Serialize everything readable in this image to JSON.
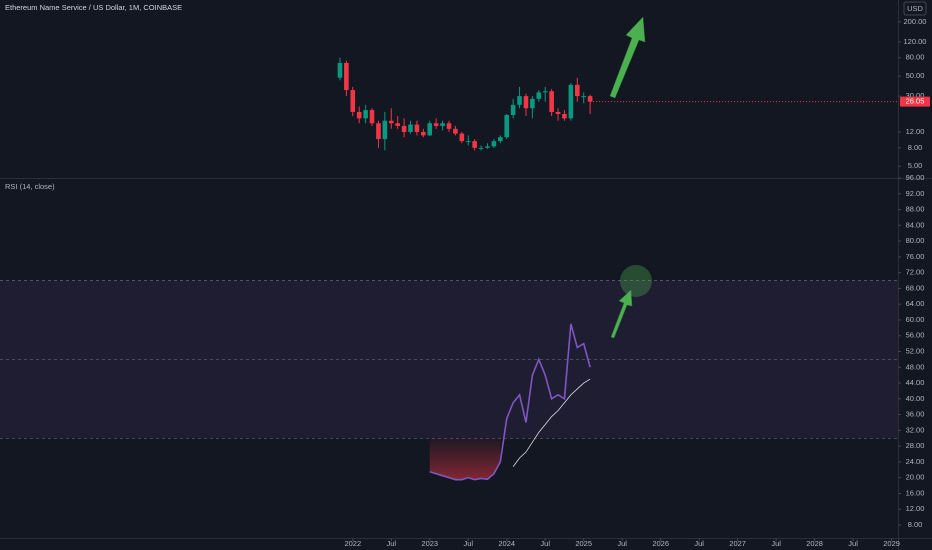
{
  "chart_data": [
    {
      "type": "candlestick",
      "title": "Ethereum Name Service / US Dollar, 1M, COINBASE",
      "currency": "USD",
      "log_scale": true,
      "up_color": "#089981",
      "down_color": "#f23645",
      "x": [
        "2021-11",
        "2021-12",
        "2022-01",
        "2022-02",
        "2022-03",
        "2022-04",
        "2022-05",
        "2022-06",
        "2022-07",
        "2022-08",
        "2022-09",
        "2022-10",
        "2022-11",
        "2022-12",
        "2023-01",
        "2023-02",
        "2023-03",
        "2023-04",
        "2023-05",
        "2023-06",
        "2023-07",
        "2023-08",
        "2023-09",
        "2023-10",
        "2023-11",
        "2023-12",
        "2024-01",
        "2024-02",
        "2024-03",
        "2024-04",
        "2024-05",
        "2024-06",
        "2024-07",
        "2024-08",
        "2024-09",
        "2024-10",
        "2024-11",
        "2024-12",
        "2025-01",
        "2025-02"
      ],
      "open": [
        48,
        70,
        35,
        20,
        17,
        21,
        15,
        10,
        16,
        15,
        14,
        12,
        14.5,
        12,
        11,
        15,
        14,
        15,
        13,
        11.5,
        9.5,
        9.5,
        8,
        8,
        8.3,
        9.5,
        10.5,
        18.5,
        24,
        30,
        22,
        28,
        33,
        34,
        20,
        19,
        17,
        40,
        30,
        30
      ],
      "high": [
        80,
        74,
        38,
        23,
        24,
        22,
        16,
        20,
        22,
        18,
        17,
        16,
        16,
        13,
        16,
        17,
        16,
        16,
        14,
        12,
        11,
        10,
        8.5,
        9,
        10,
        11,
        19,
        28,
        38,
        32,
        30,
        35,
        38,
        36,
        22,
        21,
        42,
        48,
        33,
        31
      ],
      "low": [
        45,
        30,
        18,
        15,
        15,
        14,
        8,
        7.5,
        13,
        13,
        10.5,
        11.5,
        11,
        10.5,
        10.8,
        13,
        12.5,
        12,
        11,
        9,
        8.5,
        7.5,
        7.5,
        7.8,
        8,
        9,
        10,
        17,
        22,
        18,
        17,
        26,
        26,
        18,
        16,
        16,
        16,
        26,
        25,
        19
      ],
      "close": [
        70,
        35,
        20,
        17,
        21,
        15,
        10,
        16,
        15,
        14,
        12,
        14.5,
        12,
        11,
        15,
        14,
        15,
        13,
        11.5,
        9.5,
        9.5,
        8,
        8,
        8.3,
        9.5,
        10.5,
        18.5,
        24,
        30,
        22,
        28,
        33,
        34,
        20,
        19,
        17,
        40,
        30,
        30,
        26.05
      ],
      "ylim": [
        3.7,
        350
      ],
      "yticks": [
        {
          "value": 200,
          "label": "200.00"
        },
        {
          "value": 120,
          "label": "120.00"
        },
        {
          "value": 80,
          "label": "80.00"
        },
        {
          "value": 50,
          "label": "50.00"
        },
        {
          "value": 30,
          "label": "30.00"
        },
        {
          "value": 12,
          "label": "12.00"
        },
        {
          "value": 8,
          "label": "8.00"
        },
        {
          "value": 5,
          "label": "5.00"
        }
      ],
      "xlim": [
        "2017-06",
        "2029-02"
      ]
    },
    {
      "type": "line",
      "title": "RSI (14, close)",
      "x": [
        "2023-01",
        "2023-02",
        "2023-03",
        "2023-04",
        "2023-05",
        "2023-06",
        "2023-07",
        "2023-08",
        "2023-09",
        "2023-10",
        "2023-11",
        "2023-12",
        "2024-01",
        "2024-02",
        "2024-03",
        "2024-04",
        "2024-05",
        "2024-06",
        "2024-07",
        "2024-08",
        "2024-09",
        "2024-10",
        "2024-11",
        "2024-12",
        "2025-01",
        "2025-02"
      ],
      "series": [
        {
          "color": "#7e57c2",
          "values": [
            21.5,
            21,
            20.5,
            20,
            19.5,
            19.5,
            20,
            19.5,
            19.8,
            19.6,
            21,
            24,
            35,
            39,
            41,
            34,
            46,
            50,
            46,
            40,
            41,
            40,
            59,
            53,
            54,
            48
          ]
        },
        {
          "color": "#e0e0e0",
          "values": [
            null,
            null,
            null,
            null,
            null,
            null,
            null,
            null,
            null,
            null,
            null,
            null,
            null,
            22.8,
            25,
            26.5,
            29,
            31.5,
            33.5,
            35.5,
            37,
            39,
            41,
            42.5,
            44,
            45
          ]
        }
      ],
      "bands": [
        70,
        50,
        30
      ],
      "band_color": "#7e57c2",
      "ylim": [
        4.7,
        96
      ],
      "yticks": [
        {
          "value": 96,
          "label": "96.00"
        },
        {
          "value": 92,
          "label": "92.00"
        },
        {
          "value": 88,
          "label": "88.00"
        },
        {
          "value": 84,
          "label": "84.00"
        },
        {
          "value": 80,
          "label": "80.00"
        },
        {
          "value": 76,
          "label": "76.00"
        },
        {
          "value": 72,
          "label": "72.00"
        },
        {
          "value": 68,
          "label": "68.00"
        },
        {
          "value": 64,
          "label": "64.00"
        },
        {
          "value": 60,
          "label": "60.00"
        },
        {
          "value": 56,
          "label": "56.00"
        },
        {
          "value": 52,
          "label": "52.00"
        },
        {
          "value": 48,
          "label": "48.00"
        },
        {
          "value": 44,
          "label": "44.00"
        },
        {
          "value": 40,
          "label": "40.00"
        },
        {
          "value": 36,
          "label": "36.00"
        },
        {
          "value": 32,
          "label": "32.00"
        },
        {
          "value": 28,
          "label": "28.00"
        },
        {
          "value": 24,
          "label": "24.00"
        },
        {
          "value": 20,
          "label": "20.00"
        },
        {
          "value": 16,
          "label": "16.00"
        },
        {
          "value": 12,
          "label": "12.00"
        },
        {
          "value": 8,
          "label": "8.00"
        }
      ],
      "xlim": [
        "2017-06",
        "2029-02"
      ],
      "xticks": [
        {
          "value": "2022-01",
          "label": "2022"
        },
        {
          "value": "2022-07",
          "label": "Jul"
        },
        {
          "value": "2023-01",
          "label": "2023"
        },
        {
          "value": "2023-07",
          "label": "Jul"
        },
        {
          "value": "2024-01",
          "label": "2024"
        },
        {
          "value": "2024-07",
          "label": "Jul"
        },
        {
          "value": "2025-01",
          "label": "2025"
        },
        {
          "value": "2025-07",
          "label": "Jul"
        },
        {
          "value": "2026-01",
          "label": "2026"
        },
        {
          "value": "2026-07",
          "label": "Jul"
        },
        {
          "value": "2027-01",
          "label": "2027"
        },
        {
          "value": "2027-07",
          "label": "Jul"
        },
        {
          "value": "2028-01",
          "label": "2028"
        },
        {
          "value": "2028-07",
          "label": "Jul"
        },
        {
          "value": "2029-01",
          "label": "2029"
        }
      ]
    }
  ]
}
